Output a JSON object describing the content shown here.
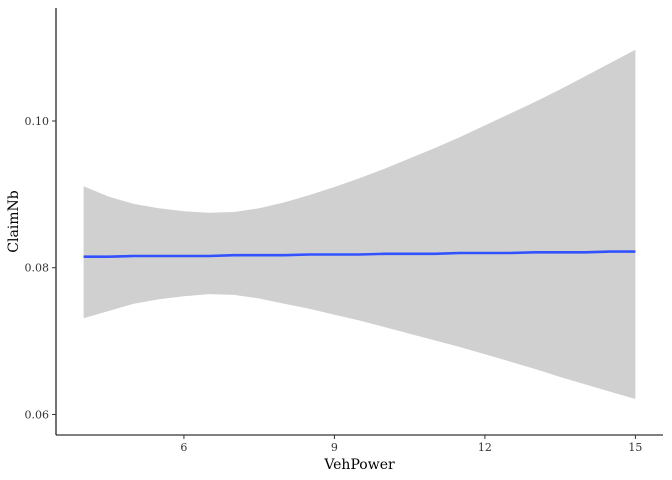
{
  "chart_data": {
    "type": "line",
    "title": "",
    "xlabel": "VehPower",
    "ylabel": "ClaimNb",
    "xlim": [
      3.45,
      15.55
    ],
    "ylim": [
      0.0572,
      0.1154
    ],
    "x_ticks": [
      6,
      9,
      12,
      15
    ],
    "x_tick_labels": [
      "6",
      "9",
      "12",
      "15"
    ],
    "y_ticks": [
      0.06,
      0.08,
      0.1
    ],
    "y_tick_labels": [
      "0.06",
      "0.08",
      "0.10"
    ],
    "grid": false,
    "legend": "none",
    "colors": {
      "line": "#3352ff",
      "ribbon": "#d0d0d0",
      "axis": "#000000"
    },
    "series": [
      {
        "x": [
          4,
          4.5,
          5,
          5.5,
          6,
          6.5,
          7,
          7.5,
          8,
          8.5,
          9,
          9.5,
          10,
          10.5,
          11,
          11.5,
          12,
          12.5,
          13,
          13.5,
          14,
          14.5,
          15
        ],
        "y": [
          0.0815,
          0.0815,
          0.0816,
          0.0816,
          0.0816,
          0.0816,
          0.0817,
          0.0817,
          0.0817,
          0.0818,
          0.0818,
          0.0818,
          0.0819,
          0.0819,
          0.0819,
          0.082,
          0.082,
          0.082,
          0.0821,
          0.0821,
          0.0821,
          0.0822,
          0.0822
        ],
        "ymin": [
          0.0731,
          0.0741,
          0.0751,
          0.0757,
          0.0761,
          0.0764,
          0.0763,
          0.0758,
          0.0751,
          0.0744,
          0.0736,
          0.0728,
          0.0719,
          0.071,
          0.0701,
          0.0692,
          0.0682,
          0.0672,
          0.0662,
          0.0651,
          0.0641,
          0.0631,
          0.0621
        ],
        "ymax": [
          0.0911,
          0.0897,
          0.0887,
          0.0881,
          0.0877,
          0.0875,
          0.0876,
          0.0881,
          0.0889,
          0.0899,
          0.091,
          0.0922,
          0.0935,
          0.0949,
          0.0963,
          0.0978,
          0.0994,
          0.101,
          0.1026,
          0.1043,
          0.1061,
          0.1079,
          0.1097
        ]
      }
    ]
  }
}
